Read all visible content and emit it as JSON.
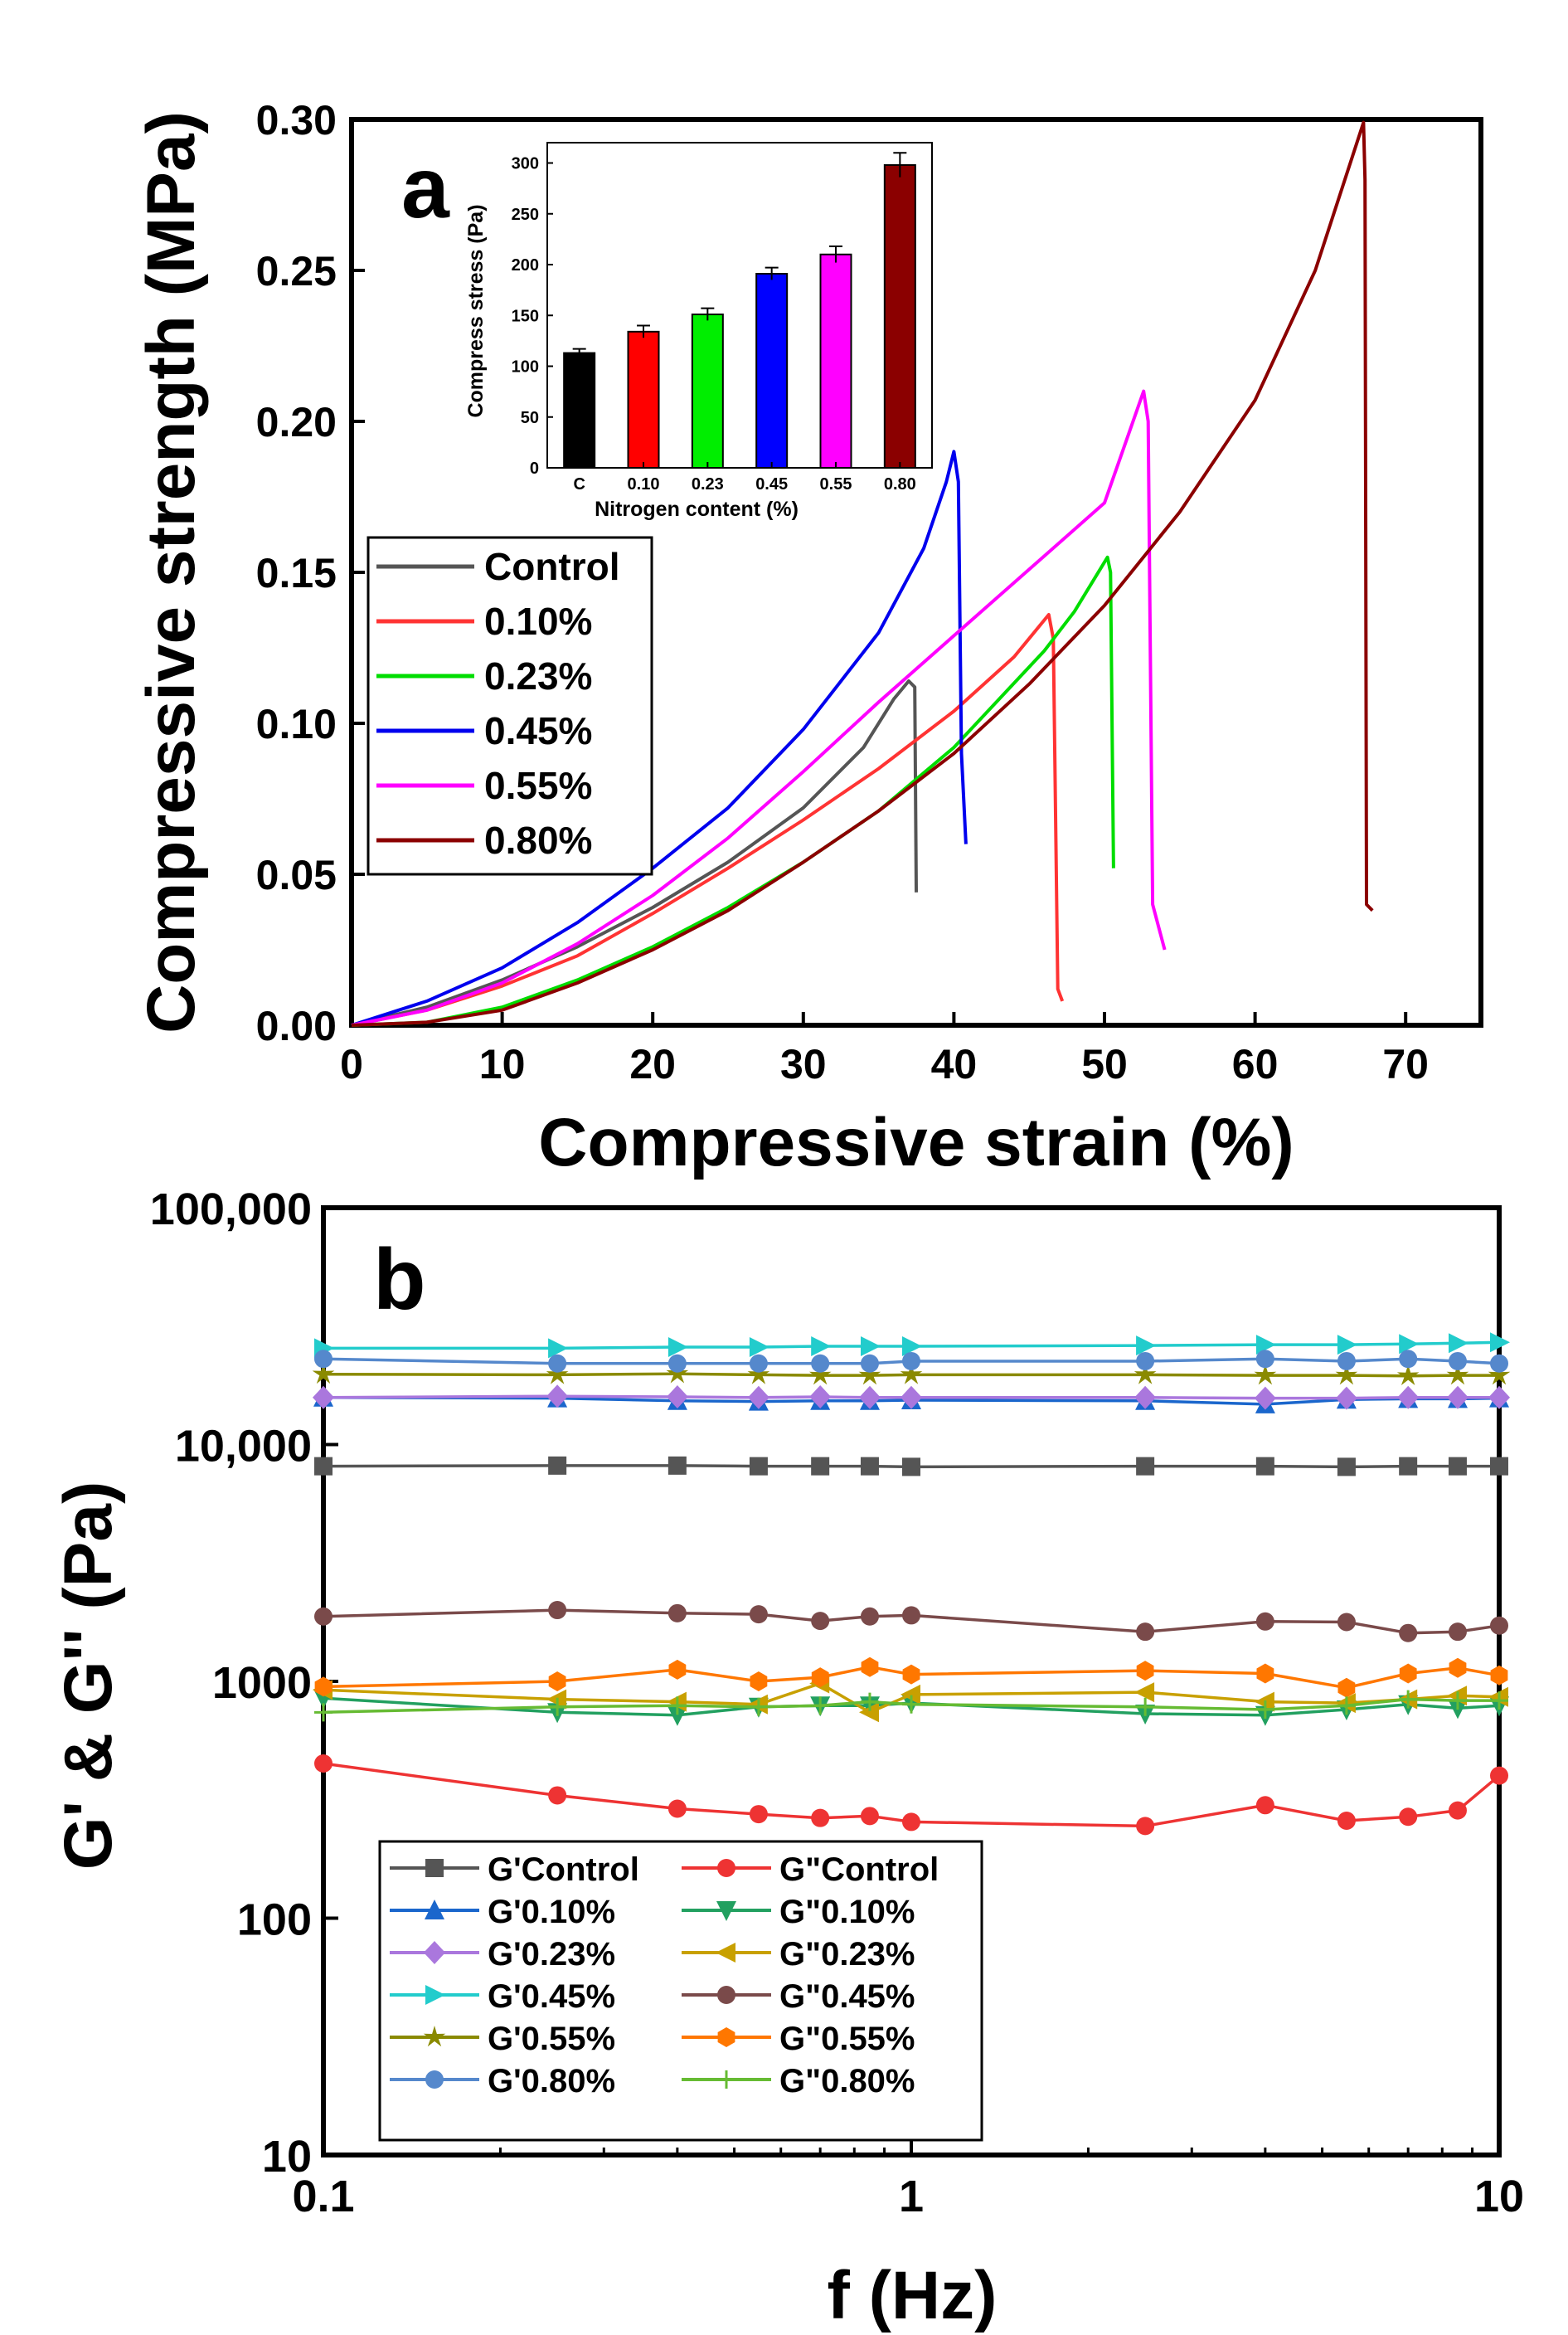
{
  "chart_data": [
    {
      "panel": "a",
      "type": "line",
      "xlabel": "Compressive strain (%)",
      "ylabel": "Compressive strength (MPa)",
      "xlim": [
        0,
        75
      ],
      "ylim": [
        0,
        0.3
      ],
      "xticks": [
        "0",
        "10",
        "20",
        "30",
        "40",
        "50",
        "60",
        "70"
      ],
      "yticks": [
        "0.00",
        "0.05",
        "0.10",
        "0.15",
        "0.20",
        "0.25",
        "0.30"
      ],
      "legend_position": "left",
      "series": [
        {
          "name": "Control",
          "color": "#555555",
          "points": [
            [
              0,
              0
            ],
            [
              5,
              0.006
            ],
            [
              10,
              0.015
            ],
            [
              15,
              0.026
            ],
            [
              20,
              0.039
            ],
            [
              25,
              0.054
            ],
            [
              30,
              0.072
            ],
            [
              34,
              0.092
            ],
            [
              36,
              0.108
            ],
            [
              37,
              0.114
            ],
            [
              37.4,
              0.112
            ],
            [
              37.5,
              0.044
            ]
          ]
        },
        {
          "name": "0.10%",
          "color": "#ff3333",
          "points": [
            [
              0,
              0
            ],
            [
              5,
              0.005
            ],
            [
              10,
              0.013
            ],
            [
              15,
              0.023
            ],
            [
              20,
              0.037
            ],
            [
              25,
              0.052
            ],
            [
              30,
              0.068
            ],
            [
              35,
              0.085
            ],
            [
              40,
              0.104
            ],
            [
              44,
              0.122
            ],
            [
              46.3,
              0.136
            ],
            [
              46.6,
              0.128
            ],
            [
              46.9,
              0.012
            ],
            [
              47.2,
              0.008
            ]
          ]
        },
        {
          "name": "0.23%",
          "color": "#00dd00",
          "points": [
            [
              0,
              0
            ],
            [
              5,
              0.001
            ],
            [
              10,
              0.006
            ],
            [
              15,
              0.015
            ],
            [
              20,
              0.026
            ],
            [
              25,
              0.039
            ],
            [
              30,
              0.054
            ],
            [
              35,
              0.071
            ],
            [
              40,
              0.092
            ],
            [
              43,
              0.108
            ],
            [
              46,
              0.124
            ],
            [
              48,
              0.137
            ],
            [
              50.2,
              0.155
            ],
            [
              50.4,
              0.15
            ],
            [
              50.6,
              0.052
            ]
          ]
        },
        {
          "name": "0.45%",
          "color": "#0000ee",
          "points": [
            [
              0,
              0
            ],
            [
              5,
              0.008
            ],
            [
              10,
              0.019
            ],
            [
              15,
              0.034
            ],
            [
              20,
              0.052
            ],
            [
              25,
              0.072
            ],
            [
              30,
              0.098
            ],
            [
              35,
              0.13
            ],
            [
              38,
              0.158
            ],
            [
              39.5,
              0.18
            ],
            [
              40,
              0.19
            ],
            [
              40.3,
              0.18
            ],
            [
              40.5,
              0.09
            ],
            [
              40.8,
              0.06
            ]
          ]
        },
        {
          "name": "0.55%",
          "color": "#ff00ff",
          "points": [
            [
              0,
              0
            ],
            [
              5,
              0.005
            ],
            [
              10,
              0.014
            ],
            [
              15,
              0.027
            ],
            [
              20,
              0.043
            ],
            [
              25,
              0.062
            ],
            [
              30,
              0.084
            ],
            [
              35,
              0.107
            ],
            [
              40,
              0.129
            ],
            [
              45,
              0.151
            ],
            [
              50,
              0.173
            ],
            [
              52.6,
              0.21
            ],
            [
              52.9,
              0.2
            ],
            [
              53.2,
              0.04
            ],
            [
              54,
              0.025
            ]
          ]
        },
        {
          "name": "0.80%",
          "color": "#8b0000",
          "points": [
            [
              0,
              0
            ],
            [
              5,
              0.001
            ],
            [
              10,
              0.005
            ],
            [
              15,
              0.014
            ],
            [
              20,
              0.025
            ],
            [
              25,
              0.038
            ],
            [
              30,
              0.054
            ],
            [
              35,
              0.071
            ],
            [
              40,
              0.09
            ],
            [
              45,
              0.113
            ],
            [
              50,
              0.139
            ],
            [
              55,
              0.17
            ],
            [
              60,
              0.207
            ],
            [
              64,
              0.25
            ],
            [
              67.2,
              0.299
            ],
            [
              67.3,
              0.28
            ],
            [
              67.4,
              0.04
            ],
            [
              67.8,
              0.038
            ]
          ]
        }
      ]
    },
    {
      "panel": "a-inset",
      "type": "bar",
      "xlabel": "Nitrogen content (%)",
      "ylabel": "Compress stress (Pa)",
      "categories": [
        "C",
        "0.10",
        "0.23",
        "0.45",
        "0.55",
        "0.80"
      ],
      "values": [
        113,
        134,
        151,
        191,
        210,
        298
      ],
      "errors": [
        4,
        6,
        6,
        6,
        8,
        12
      ],
      "colors": [
        "#000000",
        "#ff0000",
        "#00ee00",
        "#0000ff",
        "#ff00ff",
        "#8b0000"
      ],
      "ylim": [
        0,
        320
      ],
      "yticks": [
        "0",
        "50",
        "100",
        "150",
        "200",
        "250",
        "300"
      ]
    },
    {
      "panel": "b",
      "type": "line",
      "xscale": "log",
      "yscale": "log",
      "xlabel": "f (Hz)",
      "ylabel": "G' & G'' (Pa)",
      "xlim": [
        0.1,
        10
      ],
      "ylim": [
        10,
        100000
      ],
      "xticks": [
        "0.1",
        "1",
        "10"
      ],
      "yticks": [
        "10",
        "100",
        "1000",
        "10,000",
        "100,000"
      ],
      "legend_position": "bottom-left",
      "x": [
        0.1,
        0.25,
        0.4,
        0.55,
        0.7,
        0.85,
        1.0,
        2.5,
        4.0,
        5.5,
        7.0,
        8.5,
        10
      ],
      "series": [
        {
          "name": "G'Control",
          "color": "#555555",
          "marker": "square",
          "values": [
            8100,
            8150,
            8150,
            8100,
            8100,
            8100,
            8050,
            8100,
            8100,
            8050,
            8100,
            8100,
            8100
          ]
        },
        {
          "name": "G\"Control",
          "color": "#ee3333",
          "marker": "circle",
          "values": [
            450,
            330,
            290,
            275,
            265,
            270,
            255,
            245,
            300,
            258,
            268,
            285,
            400
          ]
        },
        {
          "name": "G'0.10%",
          "color": "#1a66cc",
          "marker": "triangle-up",
          "values": [
            15800,
            15700,
            15300,
            15200,
            15300,
            15300,
            15400,
            15300,
            14800,
            15500,
            15600,
            15600,
            15700
          ]
        },
        {
          "name": "G\"0.10%",
          "color": "#22a060",
          "marker": "triangle-down",
          "values": [
            850,
            740,
            720,
            780,
            790,
            790,
            810,
            730,
            720,
            760,
            800,
            770,
            790
          ]
        },
        {
          "name": "G'0.23%",
          "color": "#aa77dd",
          "marker": "diamond",
          "values": [
            15800,
            16000,
            15900,
            15800,
            15900,
            15800,
            15800,
            15800,
            15700,
            15700,
            15800,
            15800,
            15800
          ]
        },
        {
          "name": "G\"0.23%",
          "color": "#c8a000",
          "marker": "triangle-left",
          "values": [
            920,
            840,
            820,
            800,
            980,
            740,
            880,
            900,
            820,
            810,
            840,
            870,
            860
          ]
        },
        {
          "name": "G'0.45%",
          "color": "#22cccc",
          "marker": "triangle-right",
          "values": [
            25500,
            25500,
            25800,
            25800,
            26000,
            26000,
            26000,
            26200,
            26400,
            26400,
            26600,
            26800,
            27000
          ]
        },
        {
          "name": "G\"0.45%",
          "color": "#7a4a4a",
          "marker": "circle",
          "values": [
            1880,
            2000,
            1940,
            1920,
            1800,
            1880,
            1900,
            1620,
            1790,
            1780,
            1600,
            1620,
            1720
          ]
        },
        {
          "name": "G'0.55%",
          "color": "#8a8a00",
          "marker": "star",
          "values": [
            19800,
            19700,
            19900,
            19700,
            19600,
            19600,
            19700,
            19700,
            19600,
            19600,
            19500,
            19600,
            19600
          ]
        },
        {
          "name": "G\"0.55%",
          "color": "#ff7700",
          "marker": "hexagon",
          "values": [
            950,
            1000,
            1120,
            1000,
            1040,
            1150,
            1070,
            1110,
            1080,
            940,
            1080,
            1140,
            1060
          ]
        },
        {
          "name": "G'0.80%",
          "color": "#5588cc",
          "marker": "circle",
          "values": [
            23000,
            22000,
            22000,
            22000,
            22000,
            22000,
            22500,
            22500,
            23000,
            22500,
            23000,
            22500,
            22000
          ]
        },
        {
          "name": "G\"0.80%",
          "color": "#66bb33",
          "marker": "plus",
          "values": [
            740,
            780,
            790,
            780,
            790,
            820,
            800,
            780,
            760,
            790,
            840,
            830,
            830
          ]
        }
      ]
    }
  ],
  "panel_a": {
    "label": "a",
    "xlabel": "Compressive strain (%)",
    "ylabel": "Compressive strength (MPa)",
    "inset_xlabel": "Nitrogen content (%)",
    "inset_ylabel": "Compress stress (Pa)"
  },
  "panel_b": {
    "label": "b",
    "xlabel": "f (Hz)",
    "ylabel": "G' & G'' (Pa)"
  }
}
